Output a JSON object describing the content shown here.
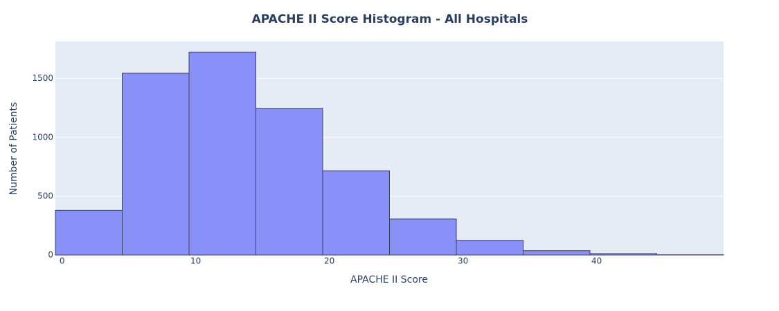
{
  "chart_data": {
    "type": "histogram",
    "title": "APACHE II Score Histogram - All Hospitals",
    "x_label": "APACHE II Score",
    "y_label": "Number of Patients",
    "bins": [
      -0.5,
      4.5,
      9.5,
      14.5,
      19.5,
      24.5,
      29.5,
      34.5,
      39.5,
      44.5,
      49.5
    ],
    "values": [
      380,
      1545,
      1725,
      1247,
      716,
      306,
      125,
      37,
      12,
      2
    ],
    "color": "#8991f8",
    "edge_color": "#3a3f5c",
    "xlim": [
      -0.5,
      49.5
    ],
    "xticks": [
      0,
      10,
      20,
      30,
      40
    ],
    "ylim": [
      0,
      1815
    ],
    "yticks": [
      0,
      500,
      1000,
      1500
    ],
    "grid": true
  }
}
